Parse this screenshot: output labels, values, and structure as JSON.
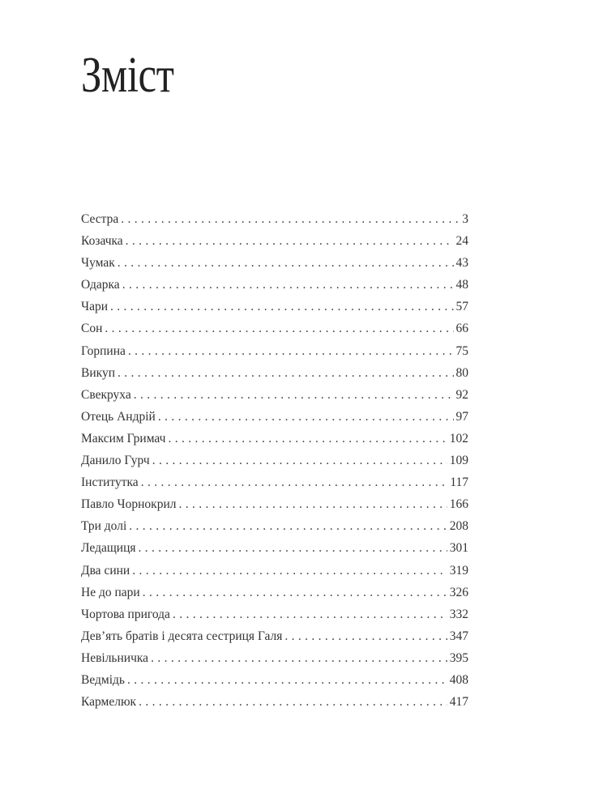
{
  "title": "Зміст",
  "entries": [
    {
      "title": "Сестра",
      "page": "3"
    },
    {
      "title": "Козачка",
      "page": "24"
    },
    {
      "title": "Чумак",
      "page": "43"
    },
    {
      "title": "Одарка",
      "page": "48"
    },
    {
      "title": "Чари",
      "page": "57"
    },
    {
      "title": "Сон",
      "page": "66"
    },
    {
      "title": "Горпина",
      "page": "75"
    },
    {
      "title": "Викуп",
      "page": "80"
    },
    {
      "title": "Свекруха",
      "page": "92"
    },
    {
      "title": "Отець Андрій",
      "page": "97"
    },
    {
      "title": "Максим Гримач",
      "page": "102"
    },
    {
      "title": "Данило Гурч",
      "page": "109"
    },
    {
      "title": "Інститутка",
      "page": "117"
    },
    {
      "title": "Павло Чорнокрил",
      "page": "166"
    },
    {
      "title": "Три долі",
      "page": "208"
    },
    {
      "title": "Ледащиця",
      "page": "301"
    },
    {
      "title": "Два сини",
      "page": "319"
    },
    {
      "title": "Не до пари",
      "page": "326"
    },
    {
      "title": "Чортова пригода",
      "page": "332"
    },
    {
      "title": "Дев’ять братів і десята сестриця Галя",
      "page": "347"
    },
    {
      "title": "Невільничка",
      "page": "395"
    },
    {
      "title": "Ведмідь",
      "page": "408"
    },
    {
      "title": "Кармелюк",
      "page": "417"
    }
  ]
}
